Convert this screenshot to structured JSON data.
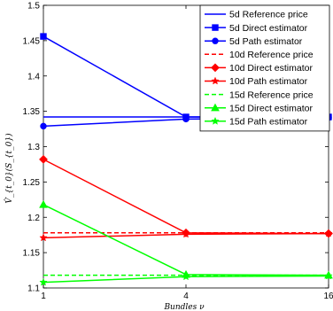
{
  "chart_data": {
    "type": "line",
    "xlabel": "Bundles ν",
    "ylabel": "V̂_{t_0}(S_{t_0})",
    "xlabel_display": "Bundles ν",
    "ylabel_display": "V t0 (S t0)",
    "x": [
      1,
      4,
      16
    ],
    "xticks": [
      "1",
      "4",
      "16"
    ],
    "ylim": [
      1.1,
      1.5
    ],
    "yticks": [
      "1.1",
      "1.15",
      "1.2",
      "1.25",
      "1.3",
      "1.35",
      "1.4",
      "1.45",
      "1.5"
    ],
    "grid": false,
    "legend_position": "top-right",
    "series": [
      {
        "name": "5d Reference price",
        "values": [
          1.342,
          1.342,
          1.342
        ],
        "color": "#0000ff",
        "dash": "solid",
        "marker": "none"
      },
      {
        "name": "5d Direct estimator",
        "values": [
          1.456,
          1.342,
          1.342
        ],
        "color": "#0000ff",
        "dash": "solid",
        "marker": "square"
      },
      {
        "name": "5d Path estimator",
        "values": [
          1.329,
          1.339,
          1.341
        ],
        "color": "#0000ff",
        "dash": "solid",
        "marker": "circle"
      },
      {
        "name": "10d Reference price",
        "values": [
          1.178,
          1.178,
          1.178
        ],
        "color": "#ff0000",
        "dash": "dashed",
        "marker": "none"
      },
      {
        "name": "10d Direct estimator",
        "values": [
          1.282,
          1.178,
          1.177
        ],
        "color": "#ff0000",
        "dash": "solid",
        "marker": "diamond"
      },
      {
        "name": "10d Path estimator",
        "values": [
          1.171,
          1.176,
          1.177
        ],
        "color": "#ff0000",
        "dash": "solid",
        "marker": "star"
      },
      {
        "name": "15d Reference price",
        "values": [
          1.118,
          1.118,
          1.118
        ],
        "color": "#00ff00",
        "dash": "dashed",
        "marker": "none"
      },
      {
        "name": "15d Direct estimator",
        "values": [
          1.218,
          1.119,
          1.118
        ],
        "color": "#00ff00",
        "dash": "solid",
        "marker": "triangle"
      },
      {
        "name": "15d Path estimator",
        "values": [
          1.108,
          1.116,
          1.117
        ],
        "color": "#00ff00",
        "dash": "solid",
        "marker": "star"
      }
    ]
  }
}
